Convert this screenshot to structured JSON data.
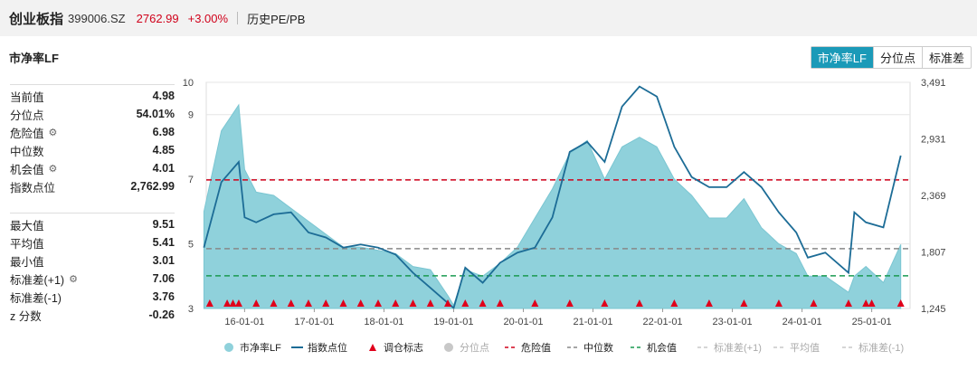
{
  "header": {
    "name": "创业板指",
    "code": "399006.SZ",
    "price": "2762.99",
    "change": "+3.00%",
    "history_link": "历史PE/PB"
  },
  "panel": {
    "title": "市净率LF",
    "tabs": [
      {
        "label": "市净率LF",
        "active": true
      },
      {
        "label": "分位点",
        "active": false
      },
      {
        "label": "标准差",
        "active": false
      }
    ],
    "stats_top": [
      {
        "label": "当前值",
        "value": "4.98",
        "gear": false
      },
      {
        "label": "分位点",
        "value": "54.01%",
        "gear": false
      },
      {
        "label": "危险值",
        "value": "6.98",
        "gear": true
      },
      {
        "label": "中位数",
        "value": "4.85",
        "gear": false
      },
      {
        "label": "机会值",
        "value": "4.01",
        "gear": true
      },
      {
        "label": "指数点位",
        "value": "2,762.99",
        "gear": false
      }
    ],
    "stats_bottom": [
      {
        "label": "最大值",
        "value": "9.51",
        "gear": false
      },
      {
        "label": "平均值",
        "value": "5.41",
        "gear": false
      },
      {
        "label": "最小值",
        "value": "3.01",
        "gear": false
      },
      {
        "label": "标准差(+1)",
        "value": "7.06",
        "gear": true
      },
      {
        "label": "标准差(-1)",
        "value": "3.76",
        "gear": false
      },
      {
        "label": "z 分数",
        "value": "-0.26",
        "gear": false
      }
    ]
  },
  "colors": {
    "area": "#8fd1db",
    "index_line": "#1c6c96",
    "danger": "#d0021b",
    "median": "#888888",
    "opportunity": "#1a9a50",
    "marker": "#e0001b",
    "grey_legend": "#c8c8c8"
  },
  "chart_data": {
    "type": "area+line",
    "x_ticks": [
      "16-01-01",
      "17-01-01",
      "18-01-01",
      "19-01-01",
      "20-01-01",
      "21-01-01",
      "22-01-01",
      "23-01-01",
      "24-01-01",
      "25-01-01"
    ],
    "y_left": {
      "range": [
        3,
        10
      ],
      "ticks": [
        "3",
        "5",
        "7",
        "9",
        "10"
      ]
    },
    "y_right": {
      "range": [
        1245,
        3491
      ],
      "ticks": [
        "1,245",
        "1,807",
        "2,369",
        "2,931",
        "3,491"
      ]
    },
    "reference_lines": {
      "danger": 6.98,
      "median": 4.85,
      "opportunity": 4.01
    },
    "series": [
      {
        "name": "市净率LF",
        "kind": "area",
        "axis": "left",
        "x": [
          "2015-06",
          "2015-09",
          "2015-12",
          "2016-01",
          "2016-03",
          "2016-06",
          "2016-09",
          "2016-12",
          "2017-03",
          "2017-06",
          "2017-09",
          "2017-12",
          "2018-03",
          "2018-06",
          "2018-09",
          "2018-12",
          "2019-01",
          "2019-03",
          "2019-06",
          "2019-09",
          "2019-12",
          "2020-03",
          "2020-06",
          "2020-09",
          "2020-12",
          "2021-03",
          "2021-06",
          "2021-09",
          "2021-12",
          "2022-03",
          "2022-06",
          "2022-09",
          "2022-12",
          "2023-03",
          "2023-06",
          "2023-09",
          "2023-12",
          "2024-02",
          "2024-05",
          "2024-09",
          "2024-10",
          "2024-12",
          "2025-03",
          "2025-06"
        ],
        "values": [
          6.0,
          8.5,
          9.3,
          7.3,
          6.6,
          6.5,
          6.1,
          5.7,
          5.3,
          4.9,
          4.9,
          4.8,
          4.7,
          4.3,
          4.2,
          3.4,
          3.1,
          4.2,
          4.0,
          4.4,
          4.9,
          5.8,
          6.7,
          7.8,
          8.2,
          7.0,
          8.0,
          8.3,
          8.0,
          7.0,
          6.5,
          5.8,
          5.8,
          6.4,
          5.5,
          5.0,
          4.7,
          4.0,
          4.0,
          3.5,
          4.0,
          4.3,
          3.8,
          4.98
        ]
      },
      {
        "name": "指数点位",
        "kind": "line",
        "axis": "right",
        "x": [
          "2015-06",
          "2015-09",
          "2015-12",
          "2016-01",
          "2016-03",
          "2016-06",
          "2016-09",
          "2016-12",
          "2017-03",
          "2017-06",
          "2017-09",
          "2017-12",
          "2018-03",
          "2018-06",
          "2018-09",
          "2018-12",
          "2019-01",
          "2019-03",
          "2019-06",
          "2019-09",
          "2019-12",
          "2020-03",
          "2020-06",
          "2020-09",
          "2020-12",
          "2021-03",
          "2021-06",
          "2021-09",
          "2021-12",
          "2022-03",
          "2022-06",
          "2022-09",
          "2022-12",
          "2023-03",
          "2023-06",
          "2023-09",
          "2023-12",
          "2024-02",
          "2024-05",
          "2024-09",
          "2024-10",
          "2024-12",
          "2025-03",
          "2025-06"
        ],
        "values": [
          1850,
          2500,
          2700,
          2150,
          2100,
          2180,
          2200,
          2000,
          1950,
          1850,
          1880,
          1850,
          1780,
          1600,
          1450,
          1300,
          1250,
          1650,
          1500,
          1700,
          1800,
          1850,
          2150,
          2800,
          2900,
          2700,
          3250,
          3450,
          3350,
          2850,
          2550,
          2450,
          2450,
          2600,
          2450,
          2200,
          2000,
          1750,
          1800,
          1600,
          2200,
          2100,
          2050,
          2762.99
        ]
      },
      {
        "name": "调仓标志",
        "kind": "marker"
      },
      {
        "name": "分位点",
        "kind": "legend"
      },
      {
        "name": "危险值",
        "kind": "ref"
      },
      {
        "name": "中位数",
        "kind": "ref"
      },
      {
        "name": "机会值",
        "kind": "ref"
      },
      {
        "name": "标准差(+1)",
        "kind": "legend"
      },
      {
        "name": "平均值",
        "kind": "legend"
      },
      {
        "name": "标准差(-1)",
        "kind": "legend"
      }
    ],
    "markers_x": [
      "2015-07",
      "2015-10",
      "2015-11",
      "2015-12",
      "2016-03",
      "2016-06",
      "2016-09",
      "2016-12",
      "2017-03",
      "2017-06",
      "2017-09",
      "2017-12",
      "2018-03",
      "2018-06",
      "2018-09",
      "2018-12",
      "2019-03",
      "2019-06",
      "2019-09",
      "2020-03",
      "2020-09",
      "2021-03",
      "2021-09",
      "2022-03",
      "2022-09",
      "2023-03",
      "2023-09",
      "2024-03",
      "2024-09",
      "2024-12",
      "2025-01",
      "2025-06"
    ],
    "legend_position": "bottom"
  }
}
